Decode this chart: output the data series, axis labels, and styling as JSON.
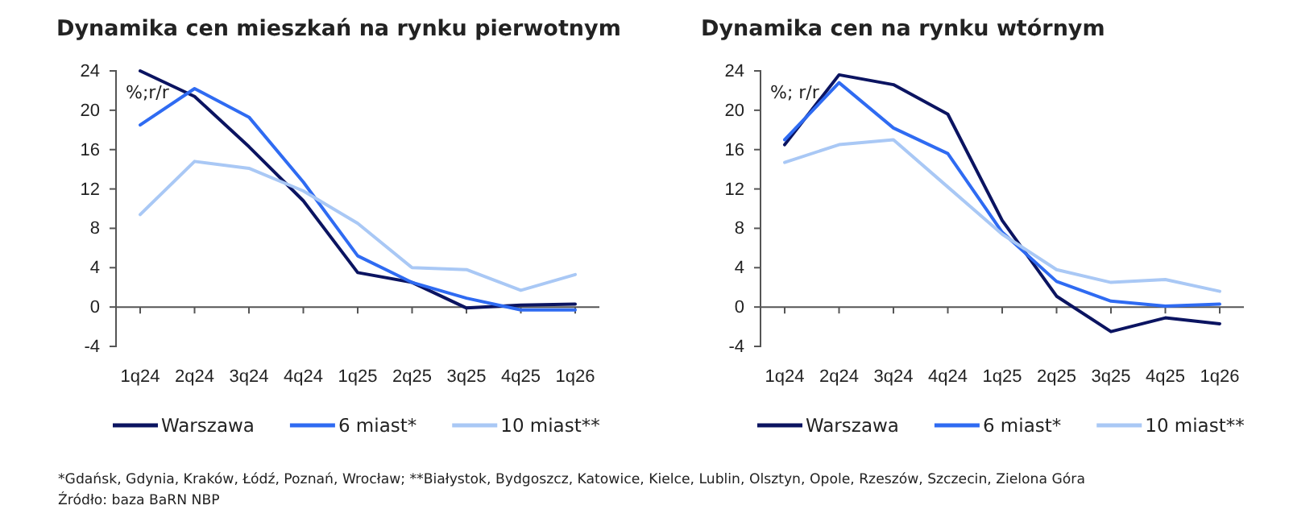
{
  "chart_data": [
    {
      "type": "line",
      "title": "Dynamika cen mieszkań na rynku pierwotnym",
      "ylabel": "%;r/r",
      "categories": [
        "1q24",
        "2q24",
        "3q24",
        "4q24",
        "1q25",
        "2q25",
        "3q25",
        "4q25",
        "1q26"
      ],
      "ylim": [
        -4,
        24
      ],
      "yticks": [
        -4,
        0,
        4,
        8,
        12,
        16,
        20,
        24
      ],
      "legend": "bottom",
      "series": [
        {
          "name": "Warszawa",
          "color": "#0b1461",
          "values": [
            24,
            21.4,
            16.3,
            10.8,
            3.5,
            2.5,
            -0.1,
            0.2,
            0.3
          ]
        },
        {
          "name": "6 miast*",
          "color": "#2f6bf2",
          "values": [
            18.5,
            22.2,
            19.3,
            12.7,
            5.2,
            2.5,
            0.9,
            -0.3,
            -0.3
          ]
        },
        {
          "name": "10 miast**",
          "color": "#a9c8f5",
          "values": [
            9.4,
            14.8,
            14.1,
            11.8,
            8.5,
            4.0,
            3.8,
            1.7,
            3.3
          ]
        }
      ],
      "annotations": [
        "*Gdańsk, Gdynia, Kraków, Łódź, Poznań, Wrocław; **Białystok, Bydgoszcz, Katowice, Kielce, Lublin, Olsztyn, Opole, Rzeszów, Szczecin, Zielona Góra",
        "Źródło: baza BaRN NBP"
      ]
    },
    {
      "type": "line",
      "title": "Dynamika cen na rynku wtórnym",
      "ylabel": "%; r/r",
      "categories": [
        "1q24",
        "2q24",
        "3q24",
        "4q24",
        "1q25",
        "2q25",
        "3q25",
        "4q25",
        "1q26"
      ],
      "ylim": [
        -4,
        24
      ],
      "yticks": [
        -4,
        0,
        4,
        8,
        12,
        16,
        20,
        24
      ],
      "legend": "bottom",
      "series": [
        {
          "name": "Warszawa",
          "color": "#0b1461",
          "values": [
            16.5,
            23.6,
            22.6,
            19.6,
            8.8,
            1.1,
            -2.5,
            -1.1,
            -1.7
          ]
        },
        {
          "name": "6 miast*",
          "color": "#2f6bf2",
          "values": [
            17.0,
            22.8,
            18.2,
            15.6,
            7.6,
            2.6,
            0.6,
            0.1,
            0.3
          ]
        },
        {
          "name": "10 miast**",
          "color": "#a9c8f5",
          "values": [
            14.7,
            16.5,
            17.0,
            12.2,
            7.4,
            3.8,
            2.5,
            2.8,
            1.6
          ]
        }
      ]
    }
  ]
}
